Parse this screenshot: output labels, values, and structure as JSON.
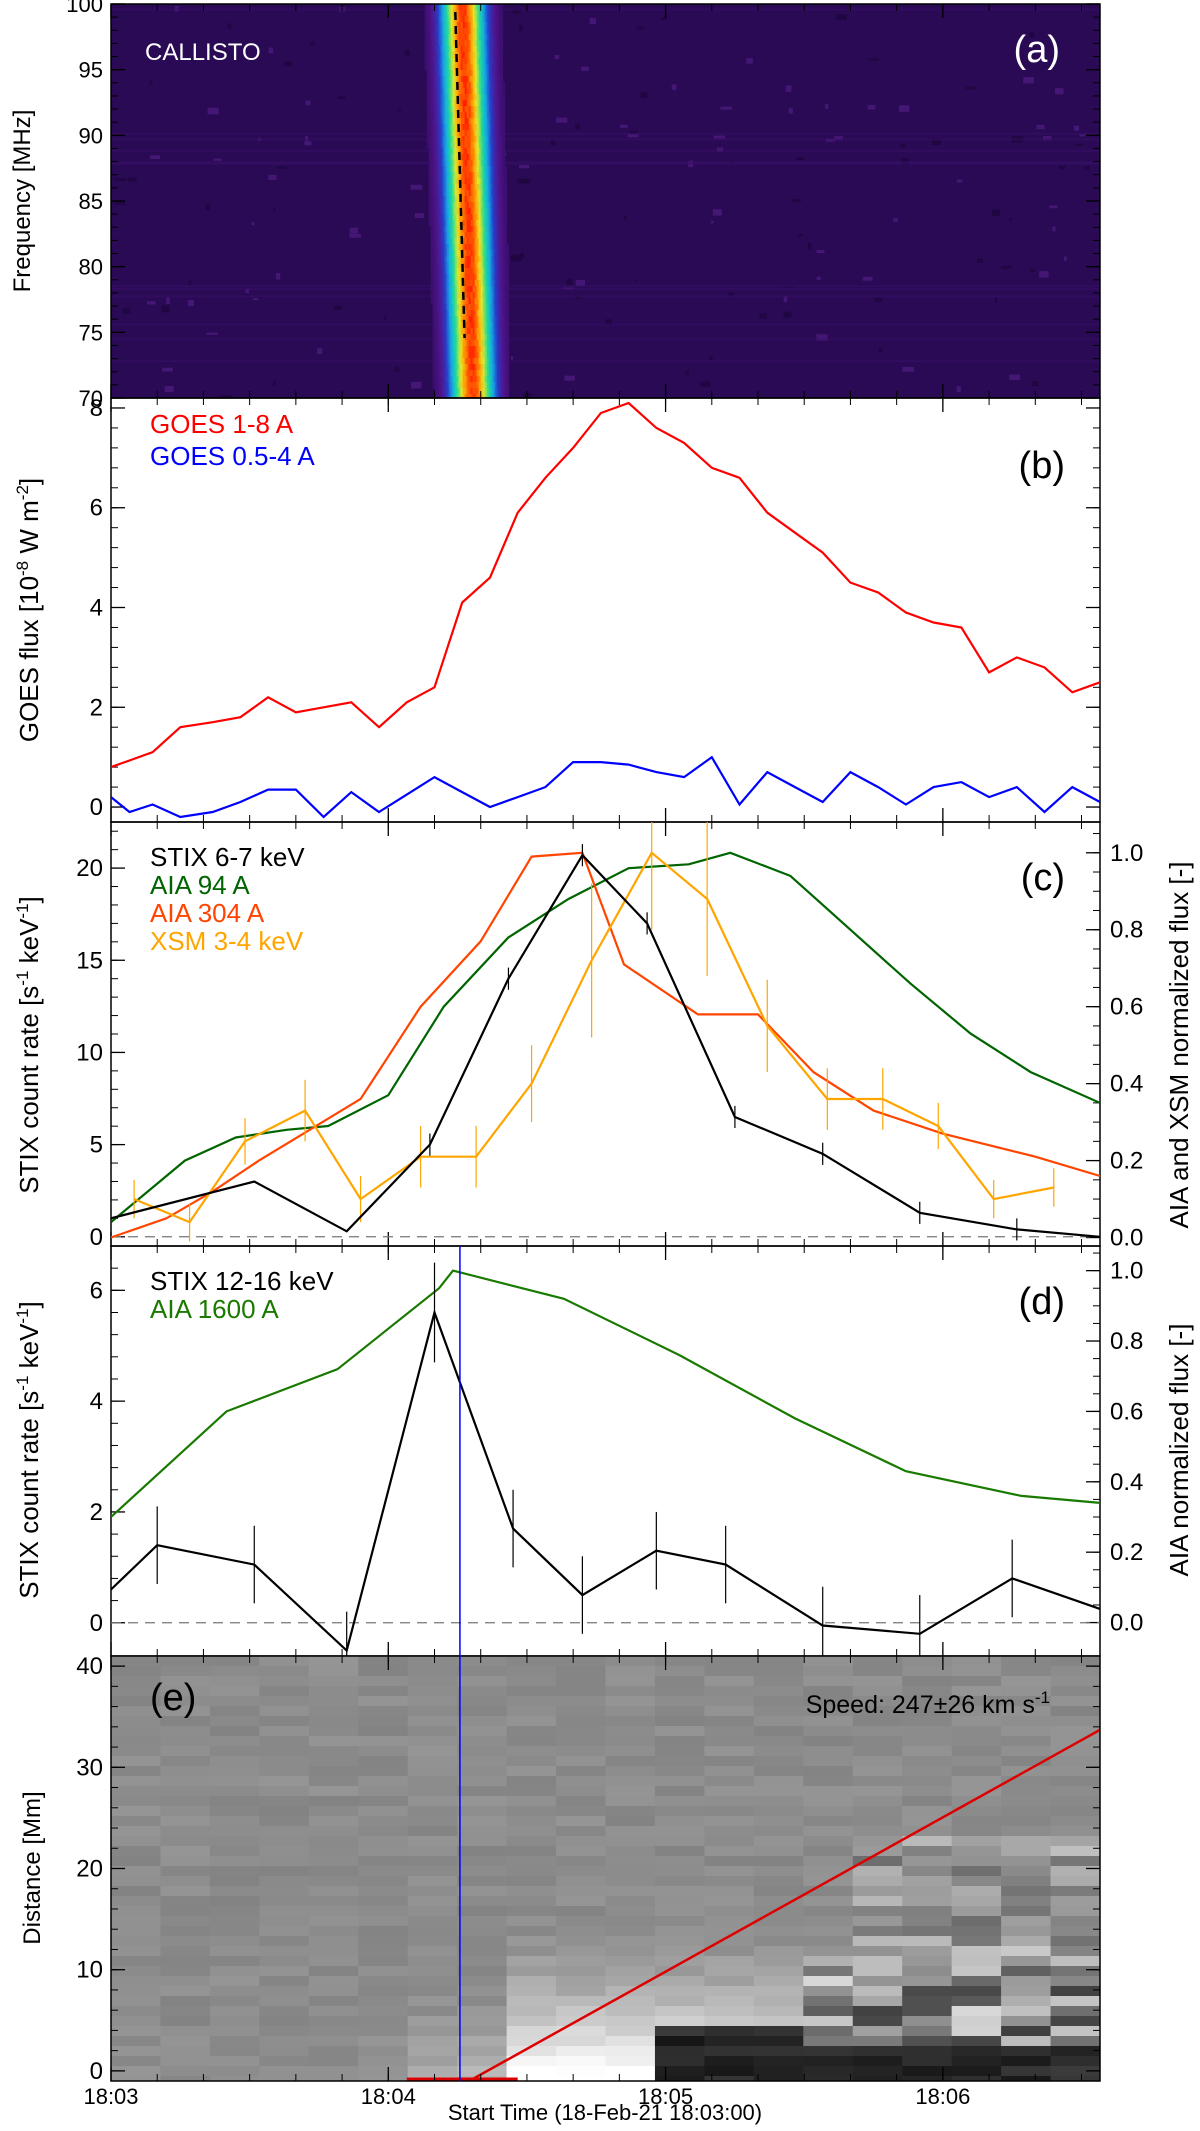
{
  "figure": {
    "xaxis_title": "Start Time (18-Feb-21 18:03:00)",
    "xticks": [
      {
        "label": "18:03",
        "t": 0
      },
      {
        "label": "18:04",
        "t": 60
      },
      {
        "label": "18:05",
        "t": 120
      },
      {
        "label": "18:06",
        "t": 180
      }
    ],
    "xlim": [
      0,
      214
    ],
    "marker_time": 75.5
  },
  "chart_data": [
    {
      "panel": "a",
      "type": "heatmap",
      "panel_label": "(a)",
      "title": "CALLISTO",
      "ylabel": "Frequency [MHz]",
      "ylim": [
        70,
        100
      ],
      "yticks": [
        70,
        75,
        80,
        85,
        90,
        95,
        100
      ],
      "burst": {
        "start_t": 68,
        "end_t": 85,
        "peak_t": 77,
        "dashed_line": {
          "t_top": 74.5,
          "t_bottom": 76.5
        }
      },
      "colors": {
        "background": "#2a0a55",
        "peak": "#ff1a00"
      }
    },
    {
      "panel": "b",
      "type": "line",
      "panel_label": "(b)",
      "ylabel": "GOES flux [10-8 W m-2]",
      "ylabel_parts": {
        "base": "GOES flux [10",
        "exp1": "-8",
        "mid": " W m",
        "exp2": "-2",
        "end": "]"
      },
      "ylim": [
        -0.3,
        8.2
      ],
      "yticks": [
        0,
        2,
        4,
        6,
        8
      ],
      "series": [
        {
          "name": "GOES 1-8 A",
          "color": "#ff0000",
          "x": [
            0,
            9,
            15,
            22,
            28,
            34,
            40,
            46,
            52,
            58,
            64,
            70,
            76,
            82,
            88,
            94,
            100,
            106,
            112,
            118,
            124,
            130,
            136,
            142,
            148,
            154,
            160,
            166,
            172,
            178,
            184,
            190,
            196,
            202,
            208,
            214
          ],
          "values": [
            0.8,
            1.1,
            1.6,
            1.7,
            1.8,
            2.2,
            1.9,
            2.0,
            2.1,
            1.6,
            2.1,
            2.4,
            4.1,
            4.6,
            5.9,
            6.6,
            7.2,
            7.9,
            8.1,
            7.6,
            7.3,
            6.8,
            6.6,
            5.9,
            5.5,
            5.1,
            4.5,
            4.3,
            3.9,
            3.7,
            3.6,
            2.7,
            3.0,
            2.8,
            2.3,
            2.5
          ]
        },
        {
          "name": "GOES 0.5-4 A",
          "color": "#0000ff",
          "x": [
            0,
            4,
            9,
            15,
            22,
            28,
            34,
            40,
            46,
            52,
            58,
            64,
            70,
            76,
            82,
            88,
            94,
            100,
            106,
            112,
            118,
            124,
            130,
            136,
            142,
            148,
            154,
            160,
            166,
            172,
            178,
            184,
            190,
            196,
            202,
            208,
            214
          ],
          "values": [
            0.2,
            -0.1,
            0.05,
            -0.2,
            -0.1,
            0.1,
            0.35,
            0.35,
            -0.2,
            0.3,
            -0.1,
            0.25,
            0.6,
            0.3,
            0.0,
            0.2,
            0.4,
            0.9,
            0.9,
            0.85,
            0.7,
            0.6,
            1.0,
            0.05,
            0.7,
            0.4,
            0.1,
            0.7,
            0.4,
            0.05,
            0.4,
            0.5,
            0.2,
            0.4,
            -0.1,
            0.4,
            0.1
          ]
        }
      ]
    },
    {
      "panel": "c",
      "type": "line",
      "panel_label": "(c)",
      "ylabel": "STIX count rate [s-1 keV-1]",
      "ylabel_parts": {
        "base": "STIX count rate [s",
        "exp1": "-1",
        "mid": " keV",
        "exp2": "-1",
        "end": "]"
      },
      "ylim": [
        -0.5,
        22.5
      ],
      "yticks": [
        0,
        5,
        10,
        15,
        20
      ],
      "y2label": "AIA and XSM normalized flux [-]",
      "y2lim": [
        -0.022,
        1.08
      ],
      "y2ticks": [
        "0.0",
        "0.2",
        "0.4",
        "0.6",
        "0.8",
        "1.0"
      ],
      "y2tick_values": [
        0,
        0.2,
        0.4,
        0.6,
        0.8,
        1.0
      ],
      "zero_line": true,
      "series": [
        {
          "name": "STIX 6-7 keV",
          "color": "#000000",
          "axis": "left",
          "x": [
            0,
            31,
            51,
            69,
            86,
            102,
            116,
            135,
            154,
            175,
            196,
            214
          ],
          "values": [
            1.0,
            3.0,
            0.3,
            5.0,
            14.0,
            20.7,
            17.0,
            6.5,
            4.5,
            1.3,
            0.4,
            0.0
          ],
          "errors": [
            0,
            0,
            0,
            0.6,
            0.6,
            0.6,
            0.6,
            0.6,
            0.6,
            0.6,
            0.6,
            0
          ]
        },
        {
          "name": "AIA 94 A",
          "color": "#006400",
          "axis": "right",
          "x": [
            0,
            16,
            27,
            38,
            47,
            60,
            72,
            86,
            99,
            112,
            125,
            134,
            147,
            160,
            173,
            186,
            199,
            214
          ],
          "values": [
            0.04,
            0.2,
            0.26,
            0.28,
            0.29,
            0.37,
            0.6,
            0.78,
            0.88,
            0.96,
            0.97,
            1.0,
            0.94,
            0.8,
            0.66,
            0.53,
            0.43,
            0.35
          ]
        },
        {
          "name": "AIA 304 A",
          "color": "#ff4500",
          "axis": "right",
          "x": [
            0,
            12,
            22,
            32,
            43,
            54,
            67,
            80,
            91,
            102,
            111,
            127,
            140,
            152,
            165,
            180,
            200,
            214
          ],
          "values": [
            0.0,
            0.05,
            0.12,
            0.2,
            0.28,
            0.36,
            0.6,
            0.77,
            0.99,
            1.0,
            0.71,
            0.58,
            0.58,
            0.43,
            0.33,
            0.27,
            0.21,
            0.16
          ]
        },
        {
          "name": "XSM 3-4 keV",
          "color": "#ffa500",
          "axis": "right",
          "x": [
            5,
            17,
            29,
            42,
            54,
            67,
            79,
            91,
            104,
            117,
            129,
            142,
            155,
            167,
            179,
            191,
            204
          ],
          "values": [
            0.1,
            0.04,
            0.25,
            0.33,
            0.1,
            0.21,
            0.21,
            0.4,
            0.72,
            1.0,
            0.88,
            0.55,
            0.36,
            0.36,
            0.29,
            0.1,
            0.13
          ],
          "errors": [
            0.05,
            0.05,
            0.06,
            0.08,
            0.06,
            0.08,
            0.08,
            0.1,
            0.2,
            0.2,
            0.2,
            0.12,
            0.08,
            0.08,
            0.06,
            0.05,
            0.05
          ]
        }
      ]
    },
    {
      "panel": "d",
      "type": "line",
      "panel_label": "(d)",
      "ylabel": "STIX count rate [s-1 keV-1]",
      "ylabel_parts": {
        "base": "STIX count rate [s",
        "exp1": "-1",
        "mid": " keV",
        "exp2": "-1",
        "end": "]"
      },
      "ylim": [
        -0.6,
        6.8
      ],
      "yticks": [
        0,
        2,
        4,
        6
      ],
      "y2label": "AIA normalized flux [-]",
      "y2lim": [
        -0.095,
        1.07
      ],
      "y2ticks": [
        "0.0",
        "0.2",
        "0.4",
        "0.6",
        "0.8",
        "1.0"
      ],
      "y2tick_values": [
        0,
        0.2,
        0.4,
        0.6,
        0.8,
        1.0
      ],
      "zero_line": true,
      "series": [
        {
          "name": "STIX 12-16 keV",
          "color": "#000000",
          "axis": "left",
          "x": [
            0,
            10,
            31,
            51,
            70,
            87,
            102,
            118,
            133,
            154,
            175,
            195,
            214
          ],
          "values": [
            0.6,
            1.4,
            1.05,
            -0.5,
            5.6,
            1.7,
            0.5,
            1.3,
            1.05,
            -0.05,
            -0.2,
            0.8,
            0.25
          ],
          "errors": [
            0,
            0.7,
            0.7,
            0.7,
            0.9,
            0.7,
            0.7,
            0.7,
            0.7,
            0.7,
            0.7,
            0.7,
            0
          ]
        },
        {
          "name": "AIA 1600 A",
          "color": "#1a7a00",
          "axis": "right",
          "x": [
            0,
            25,
            49,
            71,
            74,
            98,
            123,
            148,
            172,
            197,
            214
          ],
          "values": [
            0.3,
            0.6,
            0.72,
            0.95,
            1.0,
            0.92,
            0.76,
            0.58,
            0.43,
            0.36,
            0.34
          ]
        }
      ]
    },
    {
      "panel": "e",
      "type": "heatmap",
      "panel_label": "(e)",
      "ylabel": "Distance [Mm]",
      "ylim": [
        -1,
        41
      ],
      "yticks": [
        0,
        10,
        20,
        30,
        40
      ],
      "annotation": {
        "prefix": "Speed: 247",
        "pm": "±",
        "value2": "26",
        "unit": " km s",
        "exp": "-1"
      },
      "fit_line": {
        "color": "#dd0000",
        "t0": 77.5,
        "d0": -1,
        "t1": 214,
        "d1": 33.7
      },
      "baseline_segment": {
        "t0": 64,
        "t1": 88,
        "color": "#dd0000"
      },
      "marker_color": "#0000ff"
    }
  ]
}
